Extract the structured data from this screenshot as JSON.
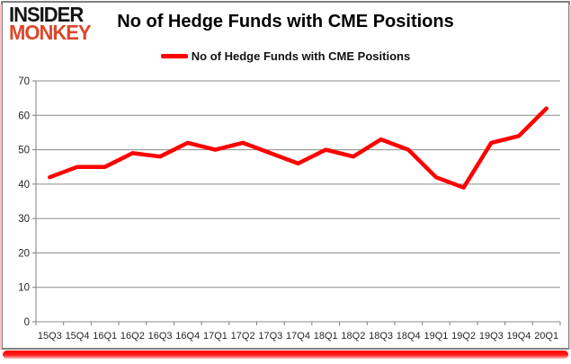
{
  "logo": {
    "line1": "INSIDER",
    "line2": "MONKEY"
  },
  "title": "No of Hedge Funds with CME Positions",
  "legend": {
    "label": "No of Hedge Funds with CME Positions"
  },
  "colors": {
    "line": "#fe0000",
    "grid": "#8a8a8a",
    "axis": "#7f7f7f",
    "tick_text": "#262626",
    "logo_black": "#151515",
    "logo_red": "#dc472b",
    "frame_border": "#818181",
    "bottom_accent": "#fe0000"
  },
  "chart_data": {
    "type": "line",
    "title": "No of Hedge Funds with CME Positions",
    "categories": [
      "15Q3",
      "15Q4",
      "16Q1",
      "16Q2",
      "16Q3",
      "16Q4",
      "17Q1",
      "17Q2",
      "17Q3",
      "17Q4",
      "18Q1",
      "18Q2",
      "18Q3",
      "18Q4",
      "19Q1",
      "19Q2",
      "19Q3",
      "19Q4",
      "20Q1"
    ],
    "series": [
      {
        "name": "No of Hedge Funds with CME Positions",
        "color": "#fe0000",
        "values": [
          42,
          45,
          45,
          49,
          48,
          52,
          50,
          52,
          49,
          46,
          50,
          48,
          53,
          50,
          42,
          39,
          52,
          54,
          62
        ]
      }
    ],
    "xlabel": "",
    "ylabel": "",
    "ylim": [
      0,
      70
    ],
    "yticks": [
      0,
      10,
      20,
      30,
      40,
      50,
      60,
      70
    ],
    "grid": "horizontal",
    "legend_position": "top-center"
  }
}
